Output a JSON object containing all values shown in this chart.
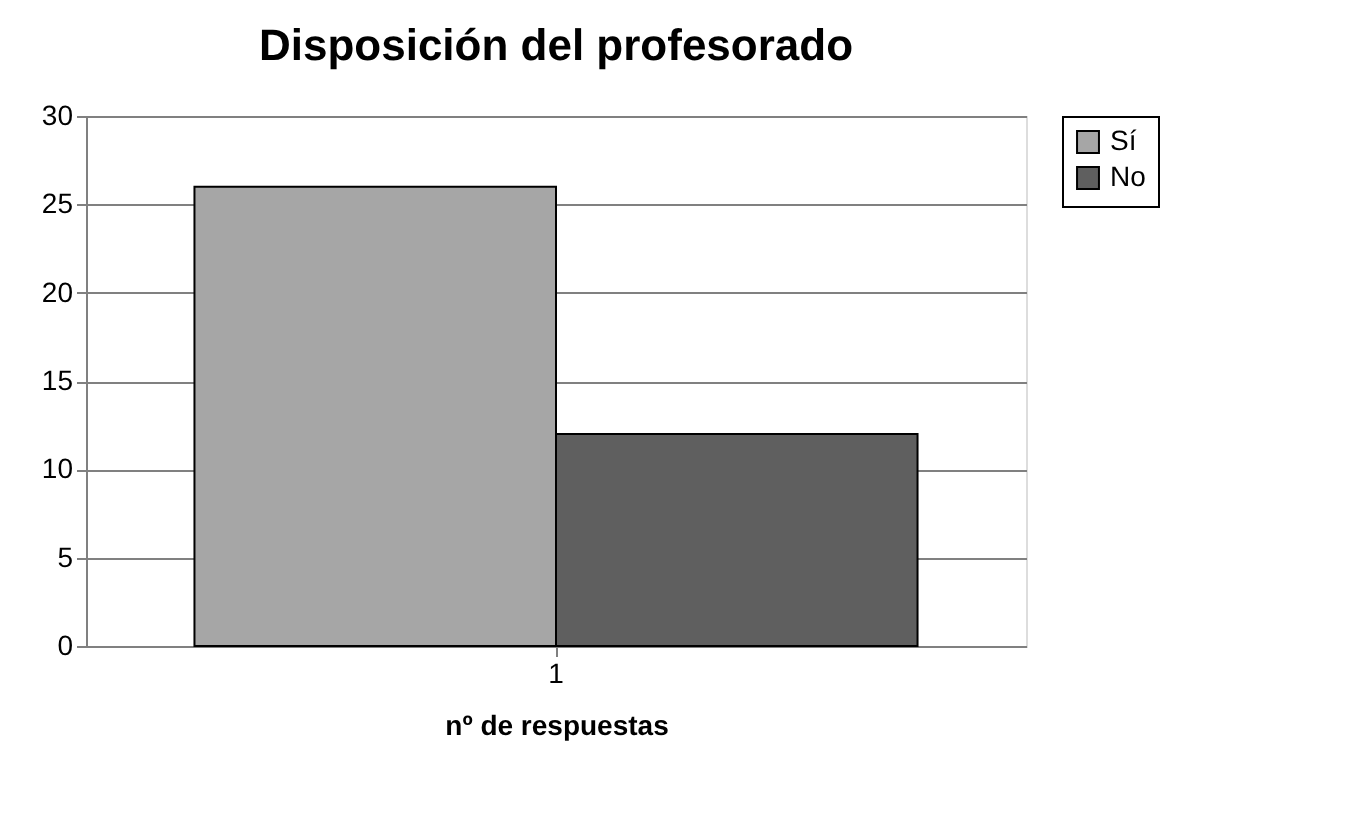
{
  "chart_data": {
    "type": "bar",
    "title": "Disposición del profesorado",
    "xlabel": "nº de respuestas",
    "categories": [
      "1"
    ],
    "series": [
      {
        "name": "Sí",
        "color": "#a6a6a6",
        "values": [
          26
        ]
      },
      {
        "name": "No",
        "color": "#5f5f5f",
        "values": [
          12
        ]
      }
    ],
    "ylim": [
      0,
      30
    ],
    "yticks": [
      0,
      5,
      10,
      15,
      20,
      25,
      30
    ],
    "grid": "y",
    "legend": "right"
  }
}
